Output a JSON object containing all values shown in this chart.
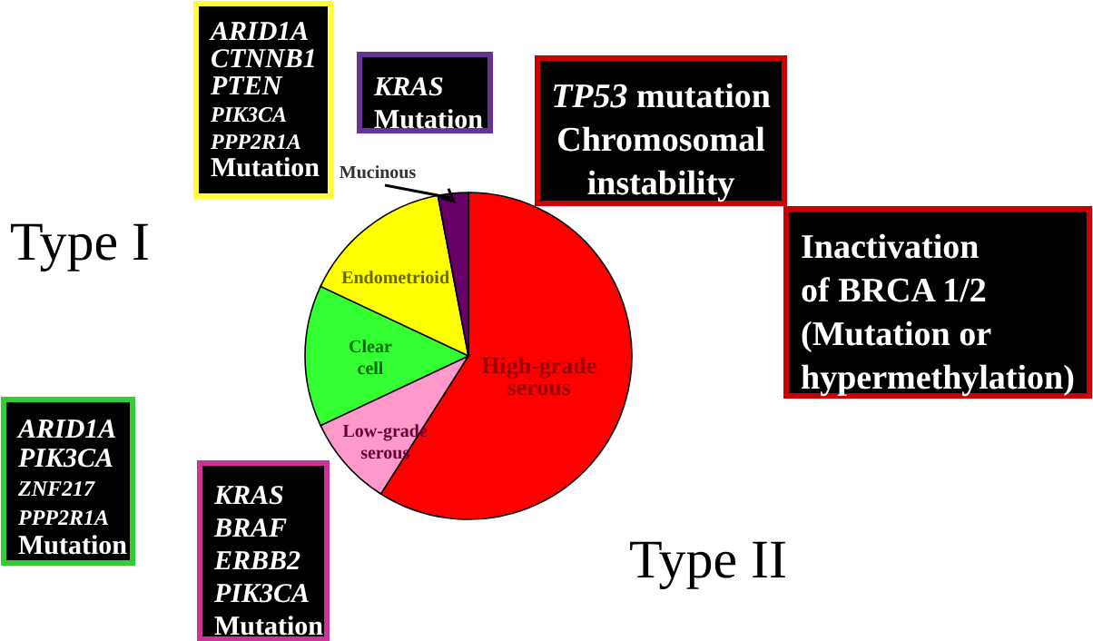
{
  "chart_data": {
    "type": "pie",
    "categories": [
      "High-grade serous",
      "Low-grade serous",
      "Clear cell",
      "Endometrioid",
      "Mucinous"
    ],
    "values": [
      59,
      9,
      14,
      15,
      3
    ],
    "colors": [
      "#ff0000",
      "#ff99cc",
      "#33ff33",
      "#ffff00",
      "#660066"
    ],
    "annotations": [
      "Type I",
      "ARID1A\nCTNNB1\nPTEN\nPIK3CA\nPPP2R1A\nMutation",
      "KRAS\nMutation",
      "TP53 mutation\nChromosomal\ninstability",
      "Inactivation\nof BRCA 1/2\n(Mutation or\nhypermethylation)",
      "ARID1A\nPIK3CA\nZNF217\nPPP2R1A\nMutation",
      "KRAS\nBRAF\nERBB2\nPIK3CA\nMutation",
      "Type II"
    ]
  }
}
